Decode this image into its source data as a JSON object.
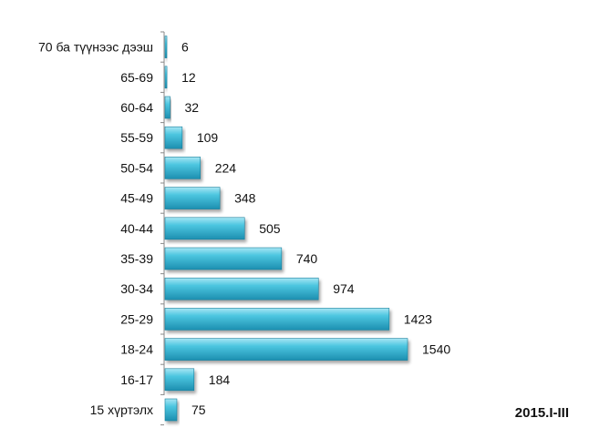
{
  "chart_data": {
    "type": "bar",
    "orientation": "horizontal",
    "categories": [
      "70 ба түүнээс дээш",
      "65-69",
      "60-64",
      "55-59",
      "50-54",
      "45-49",
      "40-44",
      "35-39",
      "30-34",
      "25-29",
      "18-24",
      "16-17",
      "15 хүртэлх"
    ],
    "values": [
      6,
      12,
      32,
      109,
      224,
      348,
      505,
      740,
      974,
      1423,
      1540,
      184,
      75
    ],
    "title": "",
    "xlabel": "",
    "ylabel": "",
    "xlim": [
      0,
      1540
    ],
    "grid": false,
    "legend": "none",
    "bar_color": "#3fbcd8"
  },
  "period_label": "2015.I-III"
}
